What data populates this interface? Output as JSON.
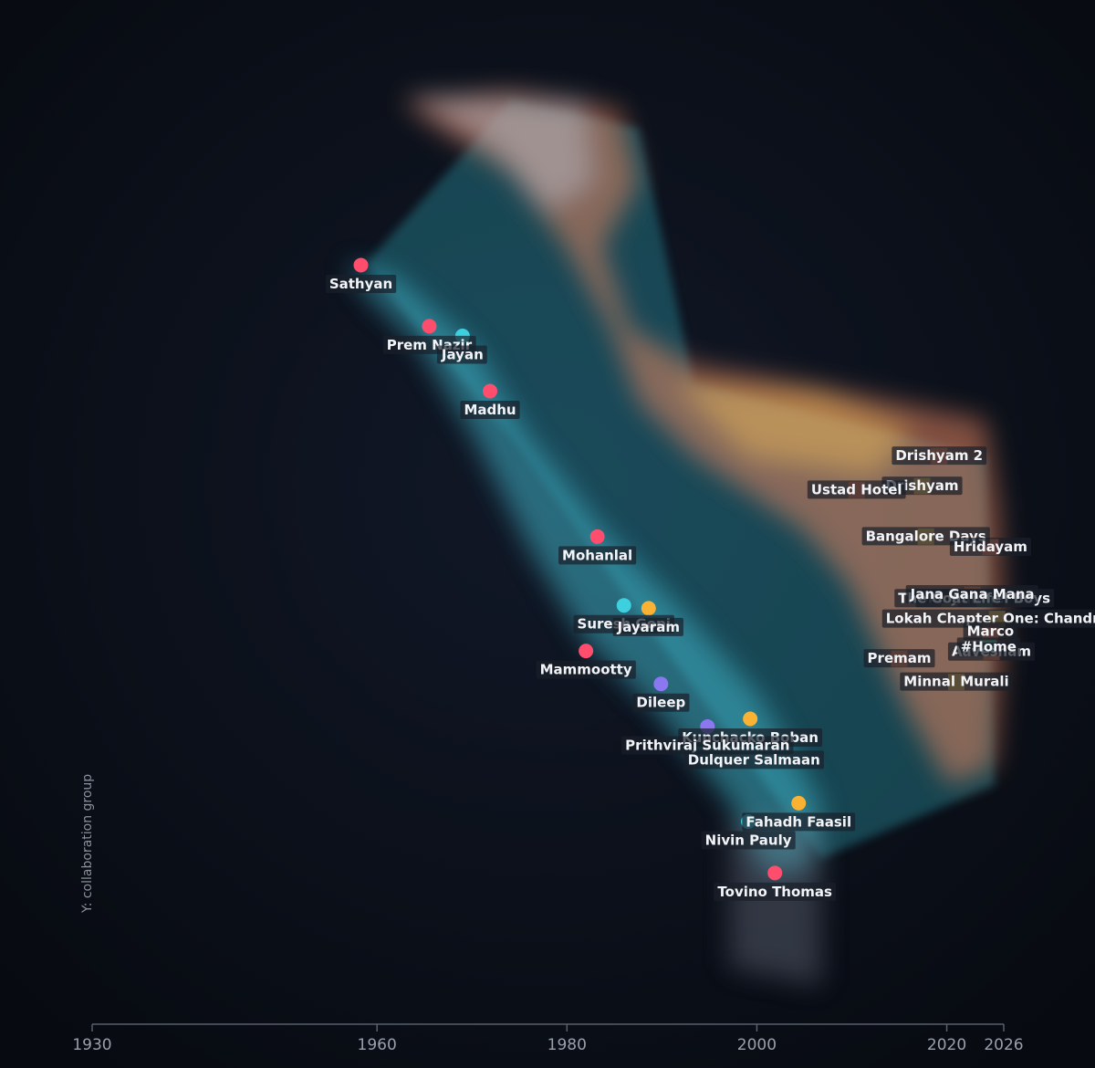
{
  "chart_data": {
    "type": "scatter",
    "y_label": "Y: collaboration group",
    "xlim": [
      1930,
      2026
    ],
    "xticks": [
      1930,
      1960,
      1980,
      2000,
      2020,
      2026
    ],
    "ylim": [
      0,
      100
    ],
    "points": [
      {
        "label": "Sathyan",
        "x": 1958.3,
        "y": 78.3,
        "shape": "circle",
        "color": "#ff4d6d"
      },
      {
        "label": "Prem Nazir",
        "x": 1965.5,
        "y": 72.0,
        "shape": "circle",
        "color": "#ff4d6d"
      },
      {
        "label": "Jayan",
        "x": 1969.0,
        "y": 71.0,
        "shape": "circle",
        "color": "#3fd0e0"
      },
      {
        "label": "Madhu",
        "x": 1971.9,
        "y": 65.3,
        "shape": "circle",
        "color": "#ff4d6d"
      },
      {
        "label": "Mohanlal",
        "x": 1983.2,
        "y": 50.3,
        "shape": "circle",
        "color": "#ff4d6d"
      },
      {
        "label": "Suresh Gopi",
        "x": 1986.0,
        "y": 43.2,
        "shape": "circle",
        "color": "#3fd0e0"
      },
      {
        "label": "Jayaram",
        "x": 1988.6,
        "y": 42.9,
        "shape": "circle",
        "color": "#f9b233"
      },
      {
        "label": "Mammootty",
        "x": 1982.0,
        "y": 38.5,
        "shape": "circle",
        "color": "#ff4d6d"
      },
      {
        "label": "Dileep",
        "x": 1989.9,
        "y": 35.1,
        "shape": "circle",
        "color": "#8b78f0"
      },
      {
        "label": "Kunchacko Boban",
        "x": 1999.3,
        "y": 31.5,
        "shape": "circle",
        "color": "#f9b233"
      },
      {
        "label": "Prithviraj Sukumaran",
        "x": 1994.8,
        "y": 30.7,
        "shape": "circle",
        "color": "#8b78f0"
      },
      {
        "label": "Dulquer Salmaan",
        "x": 1999.7,
        "y": 29.2,
        "shape": "circle",
        "color": "#3fd0e0"
      },
      {
        "label": "Fahadh Faasil",
        "x": 2004.4,
        "y": 22.8,
        "shape": "circle",
        "color": "#f9b233"
      },
      {
        "label": "Nivin Pauly",
        "x": 1999.1,
        "y": 20.9,
        "shape": "circle",
        "color": "#3fd0e0"
      },
      {
        "label": "Tovino Thomas",
        "x": 2001.9,
        "y": 15.6,
        "shape": "circle",
        "color": "#ff4d6d"
      },
      {
        "label": "Drishyam 2",
        "x": 2019.2,
        "y": 58.6,
        "shape": "square",
        "color": "#f7845e"
      },
      {
        "label": "Drishyam",
        "x": 2017.4,
        "y": 55.5,
        "shape": "square",
        "color": "#f5c15a"
      },
      {
        "label": "Ustad Hotel",
        "x": 2010.5,
        "y": 55.1,
        "shape": "square",
        "color": "#f7845e"
      },
      {
        "label": "Bangalore Days",
        "x": 2017.8,
        "y": 50.3,
        "shape": "square",
        "color": "#f5c15a"
      },
      {
        "label": "Hridayam",
        "x": 2024.6,
        "y": 49.2,
        "shape": "square",
        "color": "#f7845e"
      },
      {
        "label": "Manjummel Boys",
        "x": 2024.0,
        "y": 43.9,
        "shape": "square",
        "color": "#6fcf97"
      },
      {
        "label": "The Goat Life",
        "x": 2020.3,
        "y": 43.9,
        "shape": "square",
        "color": "#f5c15a"
      },
      {
        "label": "Jana Gana Mana",
        "x": 2022.7,
        "y": 44.3,
        "shape": "square",
        "color": "#f7845e"
      },
      {
        "label": "Lokah Chapter One: Chandra",
        "x": 2025.3,
        "y": 41.8,
        "shape": "square",
        "color": "#f5c15a"
      },
      {
        "label": "Aavesham",
        "x": 2024.7,
        "y": 38.4,
        "shape": "square",
        "color": "#f7845e"
      },
      {
        "label": "Marco",
        "x": 2024.6,
        "y": 40.5,
        "shape": "square",
        "color": "#f7845e"
      },
      {
        "label": "#Home",
        "x": 2024.4,
        "y": 38.9,
        "shape": "square",
        "color": "#6fcf97"
      },
      {
        "label": "Premam",
        "x": 2015.0,
        "y": 37.7,
        "shape": "square",
        "color": "#f7845e"
      },
      {
        "label": "Minnal Murali",
        "x": 2021.0,
        "y": 35.3,
        "shape": "square",
        "color": "#f5c15a"
      }
    ]
  }
}
